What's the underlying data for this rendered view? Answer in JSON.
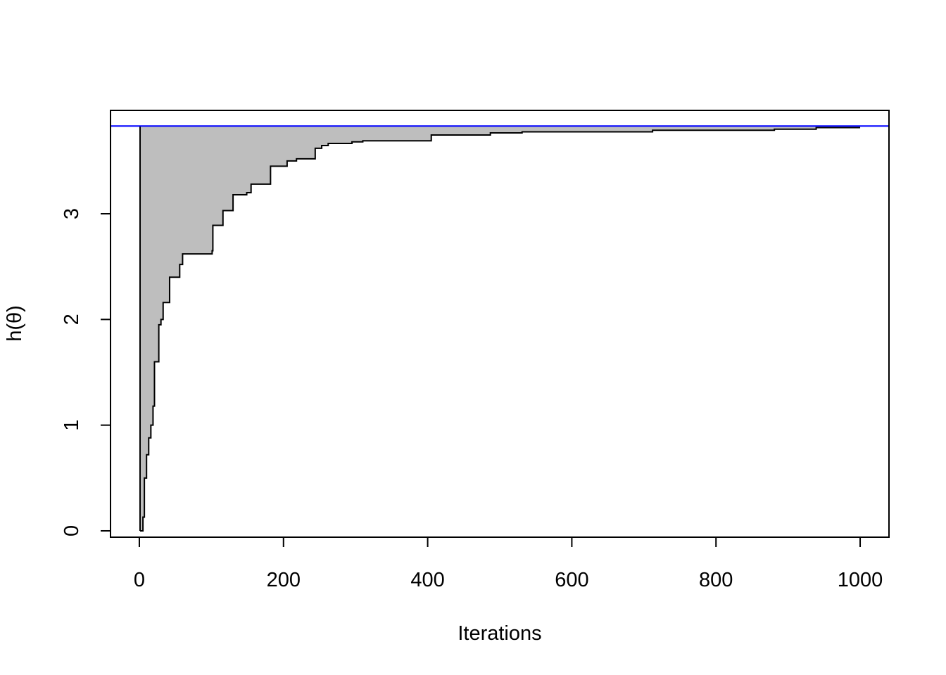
{
  "chart_data": {
    "type": "step",
    "xlabel": "Iterations",
    "ylabel": "h(θ)",
    "x": [
      1,
      5,
      7,
      10,
      13,
      16,
      19,
      21,
      27,
      30,
      33,
      42,
      56,
      60,
      101,
      102,
      116,
      130,
      149,
      155,
      182,
      205,
      218,
      244,
      253,
      262,
      295,
      310,
      405,
      487,
      531,
      712,
      881,
      939,
      1000
    ],
    "values": [
      0,
      0.13,
      0.5,
      0.72,
      0.88,
      1.0,
      1.18,
      1.6,
      1.95,
      2.0,
      2.16,
      2.4,
      2.52,
      2.62,
      2.65,
      2.89,
      3.03,
      3.18,
      3.2,
      3.28,
      3.45,
      3.5,
      3.52,
      3.62,
      3.645,
      3.665,
      3.68,
      3.69,
      3.745,
      3.765,
      3.775,
      3.79,
      3.8,
      3.815,
      3.815
    ],
    "color": "#000000",
    "fill": "#bebebe",
    "hline": 3.83,
    "hline_color": "#0000ff",
    "xlim": [
      -40,
      1040
    ],
    "ylim": [
      -0.06,
      3.978
    ],
    "xticks": [
      0,
      200,
      400,
      600,
      800,
      1000
    ],
    "yticks": [
      0,
      1,
      2,
      3
    ]
  }
}
